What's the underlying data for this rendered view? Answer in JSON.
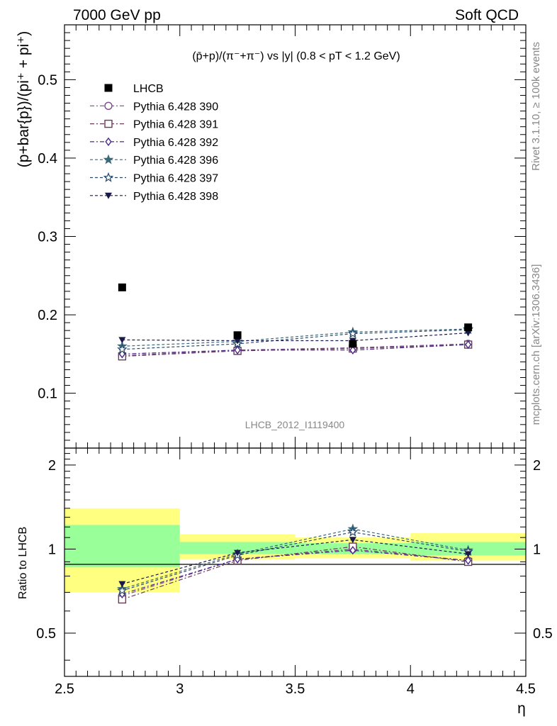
{
  "header": {
    "left": "7000 GeV pp",
    "right": "Soft QCD"
  },
  "side": {
    "top": "Rivet 3.1.10, ≥ 100k events",
    "bottom": "mcplots.cern.ch [arXiv:1306.3436]"
  },
  "analysis_id": "LHCB_2012_I1119400",
  "colors": {
    "data": "#000000",
    "p390": "#7a4a8a",
    "p391": "#6a3a5a",
    "p392": "#4a2a8a",
    "p396": "#3a6a7a",
    "p397": "#2a4a6a",
    "p398": "#1a1a4a",
    "band_outer": "#ffff80",
    "band_inner": "#99ff99"
  },
  "chart_data": [
    {
      "type": "scatter",
      "title": "(p̄+p)/(π⁻+π⁻) vs |y| (0.8 < pT < 1.2 GeV)",
      "ylabel": "(p+bar{p})/(pi⁺ + pi⁺)",
      "xlabel": "",
      "xlim": [
        2.5,
        4.5
      ],
      "ylim": [
        0.03,
        0.57
      ],
      "yticks": [
        "0.1",
        "0.2",
        "0.3",
        "0.4",
        "0.5"
      ],
      "legend_position": "top-left",
      "x": [
        2.75,
        3.25,
        3.75,
        4.25
      ],
      "series": [
        {
          "name": "LHCB",
          "values": [
            0.235,
            0.174,
            0.163,
            0.184
          ],
          "marker": "square-filled"
        },
        {
          "name": "Pythia 6.428 390",
          "values": [
            0.148,
            0.155,
            0.158,
            0.163
          ],
          "marker": "circle-open"
        },
        {
          "name": "Pythia 6.428 391",
          "values": [
            0.147,
            0.154,
            0.157,
            0.162
          ],
          "marker": "square-open"
        },
        {
          "name": "Pythia 6.428 392",
          "values": [
            0.15,
            0.155,
            0.155,
            0.162
          ],
          "marker": "diamond-open"
        },
        {
          "name": "Pythia 6.428 396",
          "values": [
            0.16,
            0.166,
            0.178,
            0.182
          ],
          "marker": "star-filled"
        },
        {
          "name": "Pythia 6.428 397",
          "values": [
            0.156,
            0.163,
            0.176,
            0.181
          ],
          "marker": "star-open"
        },
        {
          "name": "Pythia 6.428 398",
          "values": [
            0.168,
            0.167,
            0.167,
            0.177
          ],
          "marker": "triangle-down-filled"
        }
      ]
    },
    {
      "type": "scatter",
      "title": "",
      "ylabel": "Ratio to LHCB",
      "xlabel": "η",
      "xlim": [
        2.5,
        4.5
      ],
      "ylim": [
        0.35,
        2.3
      ],
      "yticks": [
        "0.5",
        "1",
        "2"
      ],
      "xticks": [
        "2.5",
        "3",
        "3.5",
        "4",
        "4.5"
      ],
      "x": [
        2.75,
        3.25,
        3.75,
        4.25
      ],
      "bins": [
        [
          2.5,
          3.0
        ],
        [
          3.0,
          3.5
        ],
        [
          3.5,
          4.0
        ],
        [
          4.0,
          4.5
        ]
      ],
      "band_outer": [
        [
          0.7,
          1.4
        ],
        [
          0.92,
          1.13
        ],
        [
          0.93,
          1.1
        ],
        [
          0.91,
          1.14
        ]
      ],
      "band_inner": [
        [
          0.86,
          1.22
        ],
        [
          0.96,
          1.06
        ],
        [
          0.96,
          1.05
        ],
        [
          0.95,
          1.06
        ]
      ],
      "series": [
        {
          "name": "Pythia 6.428 390",
          "values": [
            0.68,
            0.92,
            1.0,
            0.91
          ]
        },
        {
          "name": "Pythia 6.428 391",
          "values": [
            0.66,
            0.91,
            1.02,
            0.9
          ]
        },
        {
          "name": "Pythia 6.428 392",
          "values": [
            0.69,
            0.92,
            0.99,
            0.91
          ]
        },
        {
          "name": "Pythia 6.428 396",
          "values": [
            0.72,
            0.96,
            1.18,
            0.99
          ]
        },
        {
          "name": "Pythia 6.428 397",
          "values": [
            0.71,
            0.95,
            1.15,
            0.98
          ]
        },
        {
          "name": "Pythia 6.428 398",
          "values": [
            0.75,
            0.97,
            1.08,
            0.96
          ]
        }
      ]
    }
  ]
}
